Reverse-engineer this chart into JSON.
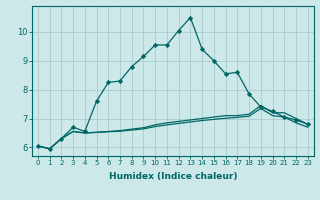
{
  "xlabel": "Humidex (Indice chaleur)",
  "bg_color": "#cce8e8",
  "grid_color": "#aacccc",
  "line_color": "#006666",
  "x_values": [
    0,
    1,
    2,
    3,
    4,
    5,
    6,
    7,
    8,
    9,
    10,
    11,
    12,
    13,
    14,
    15,
    16,
    17,
    18,
    19,
    20,
    21,
    22,
    23
  ],
  "line1": [
    6.05,
    5.95,
    6.3,
    6.7,
    6.55,
    7.6,
    8.25,
    8.3,
    8.8,
    9.15,
    9.55,
    9.55,
    10.05,
    10.5,
    9.4,
    9.0,
    8.55,
    8.6,
    7.85,
    7.4,
    7.25,
    7.05,
    6.95,
    6.8
  ],
  "line2": [
    6.05,
    5.95,
    6.3,
    6.55,
    6.5,
    6.52,
    6.55,
    6.58,
    6.63,
    6.68,
    6.78,
    6.85,
    6.9,
    6.95,
    7.0,
    7.05,
    7.1,
    7.1,
    7.15,
    7.45,
    7.2,
    7.2,
    7.0,
    6.8
  ],
  "line3": [
    6.05,
    5.95,
    6.3,
    6.55,
    6.5,
    6.52,
    6.54,
    6.56,
    6.6,
    6.64,
    6.72,
    6.78,
    6.83,
    6.88,
    6.93,
    6.97,
    7.01,
    7.04,
    7.08,
    7.35,
    7.1,
    7.05,
    6.85,
    6.7
  ],
  "yticks": [
    6,
    7,
    8,
    9,
    10
  ],
  "ylim": [
    5.7,
    10.9
  ],
  "xlim": [
    -0.5,
    23.5
  ]
}
